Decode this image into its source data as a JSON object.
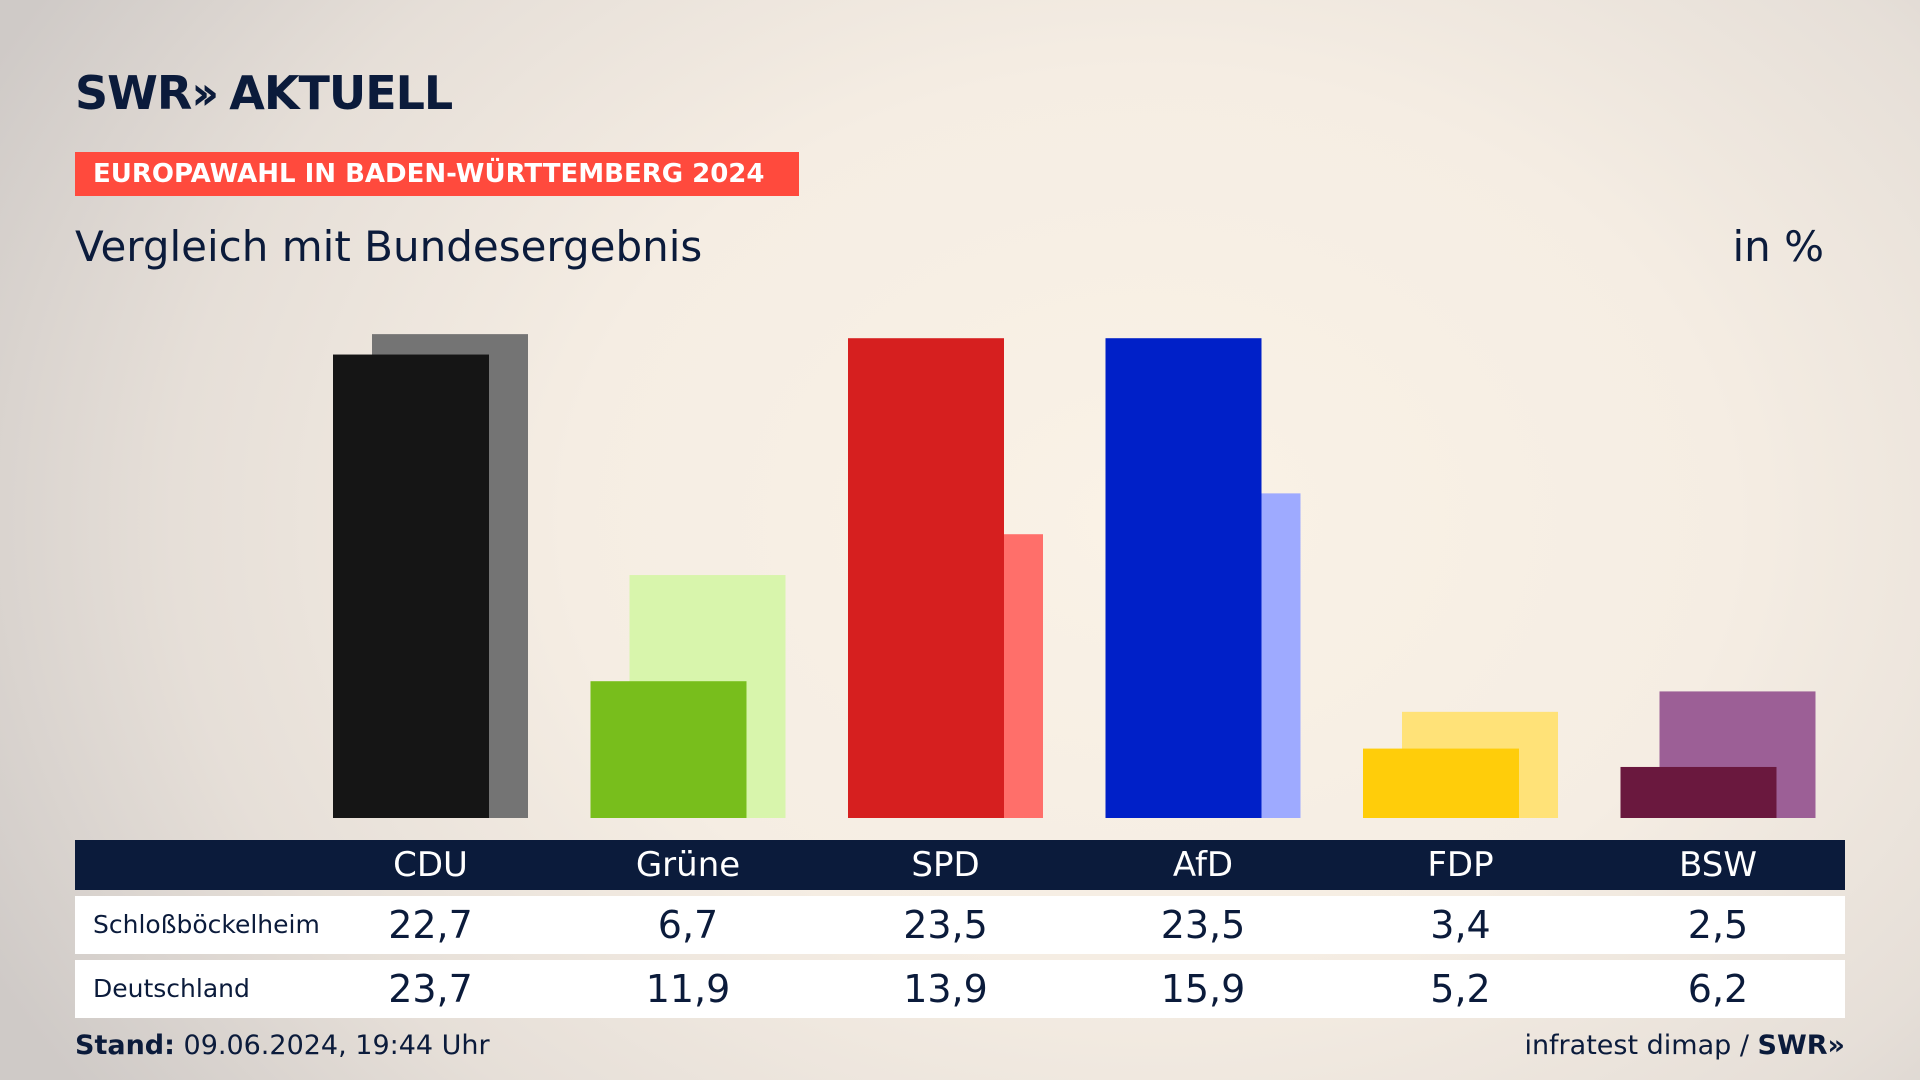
{
  "brand": {
    "logo_text": "SWR",
    "logo_chevrons": "»",
    "logo_suffix": "AKTUELL"
  },
  "banner": {
    "text": "EUROPAWAHL IN BADEN-WÜRTTEMBERG 2024"
  },
  "heading": {
    "title": "Vergleich mit Bundesergebnis",
    "unit": "in %"
  },
  "footer": {
    "stand_label": "Stand:",
    "stand_value": "09.06.2024, 19:44 Uhr",
    "source": "infratest dimap",
    "separator": " / ",
    "source_brand": "SWR»"
  },
  "chart_data": {
    "type": "bar",
    "title": "Vergleich mit Bundesergebnis",
    "ylabel": "in %",
    "ylim": [
      0,
      25
    ],
    "grid": false,
    "legend": "none",
    "categories": [
      "CDU",
      "Grüne",
      "SPD",
      "AfD",
      "FDP",
      "BSW"
    ],
    "series": [
      {
        "name": "Schloßböckelheim",
        "values": [
          22.7,
          6.7,
          23.5,
          23.5,
          3.4,
          2.5
        ],
        "labels": [
          "22,7",
          "6,7",
          "23,5",
          "23,5",
          "3,4",
          "2,5"
        ]
      },
      {
        "name": "Deutschland",
        "values": [
          23.7,
          11.9,
          13.9,
          15.9,
          5.2,
          6.2
        ],
        "labels": [
          "23,7",
          "11,9",
          "13,9",
          "15,9",
          "5,2",
          "6,2"
        ]
      }
    ],
    "colors": {
      "primary": [
        "#151515",
        "#78be1c",
        "#d61f1f",
        "#0020c8",
        "#ffcd0a",
        "#6a183e"
      ],
      "secondary": [
        "#747474",
        "#d8f5ac",
        "#ff6f6a",
        "#9eaaff",
        "#ffe278",
        "#9c5f96"
      ]
    }
  }
}
